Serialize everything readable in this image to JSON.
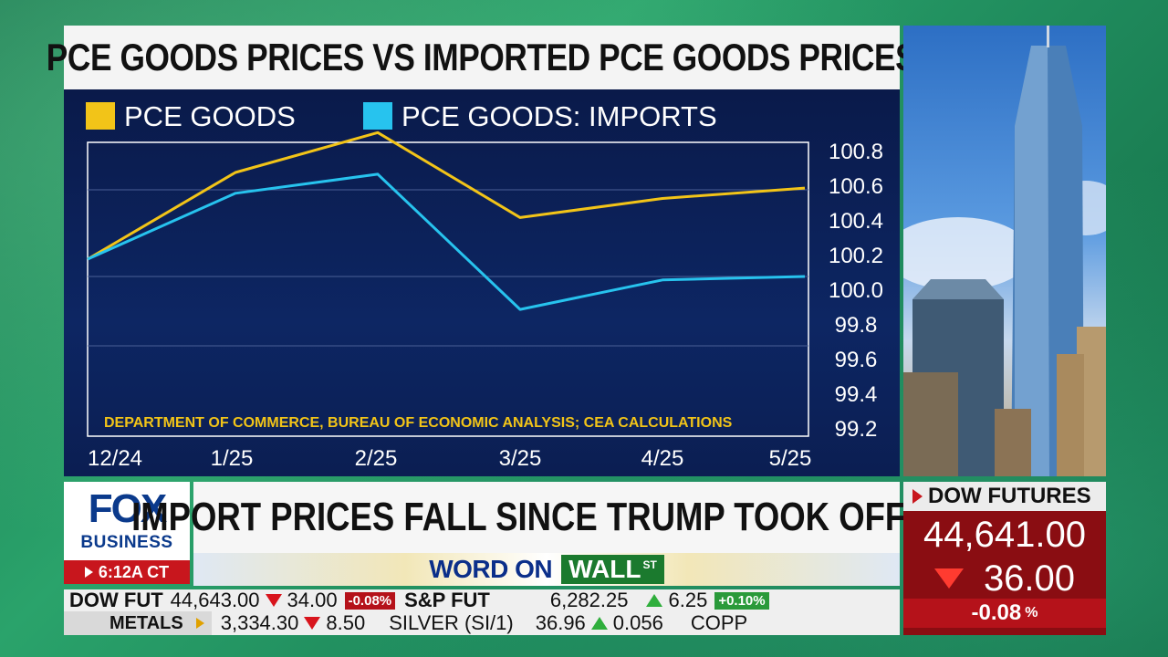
{
  "title": "PCE GOODS PRICES VS IMPORTED PCE GOODS PRICES",
  "chart_data": {
    "type": "line",
    "categories": [
      "12/24",
      "1/25",
      "2/25",
      "3/25",
      "4/25",
      "5/25"
    ],
    "series": [
      {
        "name": "PCE GOODS",
        "color": "#f2c418",
        "values": [
          100.0,
          100.5,
          100.73,
          100.24,
          100.35,
          100.41
        ]
      },
      {
        "name": "PCE GOODS: IMPORTS",
        "color": "#27c3ee",
        "values": [
          100.0,
          100.38,
          100.49,
          99.71,
          99.88,
          99.9
        ]
      }
    ],
    "y_ticks": [
      "100.8",
      "100.6",
      "100.4",
      "100.2",
      "100.0",
      "99.8",
      "99.6",
      "99.4",
      "99.2"
    ],
    "ylim": [
      99.2,
      100.8
    ],
    "y_axis_side": "right",
    "grid": true,
    "legend_position": "top-left",
    "source": "DEPARTMENT OF COMMERCE, BUREAU OF ECONOMIC ANALYSIS; CEA CALCULATIONS"
  },
  "logo": {
    "fox": "FOX",
    "business": "BUSINESS",
    "time": "6:12A CT"
  },
  "headline": "IMPORT PRICES FALL SINCE TRUMP TOOK OFFICE",
  "segment": {
    "word_on": "WORD ON",
    "wall": "WALL",
    "st": "ST"
  },
  "dow_futures": {
    "label": "DOW FUTURES",
    "value": "44,641.00",
    "change": "36.00",
    "pct": "-0.08",
    "pct_sign": "%"
  },
  "ticker": {
    "row1": [
      {
        "label": "DOW FUT",
        "value": "44,643.00",
        "dir": "down",
        "change": "34.00",
        "pct": "-0.08%"
      },
      {
        "label": "S&P FUT",
        "value": "6,282.25",
        "dir": "up",
        "change": "6.25",
        "pct": "+0.10%"
      }
    ],
    "row2_tag": "METALS",
    "row2": [
      {
        "value": "3,334.30",
        "dir": "down",
        "change": "8.50"
      },
      {
        "label": "SILVER (SI/1)",
        "value": "36.96",
        "dir": "up",
        "change": "0.056"
      }
    ],
    "row2_trailing": "COPP"
  },
  "colors": {
    "fox_blue": "#0b3a8c",
    "fox_red": "#c8161d",
    "panel_navy": "#0d2663"
  }
}
